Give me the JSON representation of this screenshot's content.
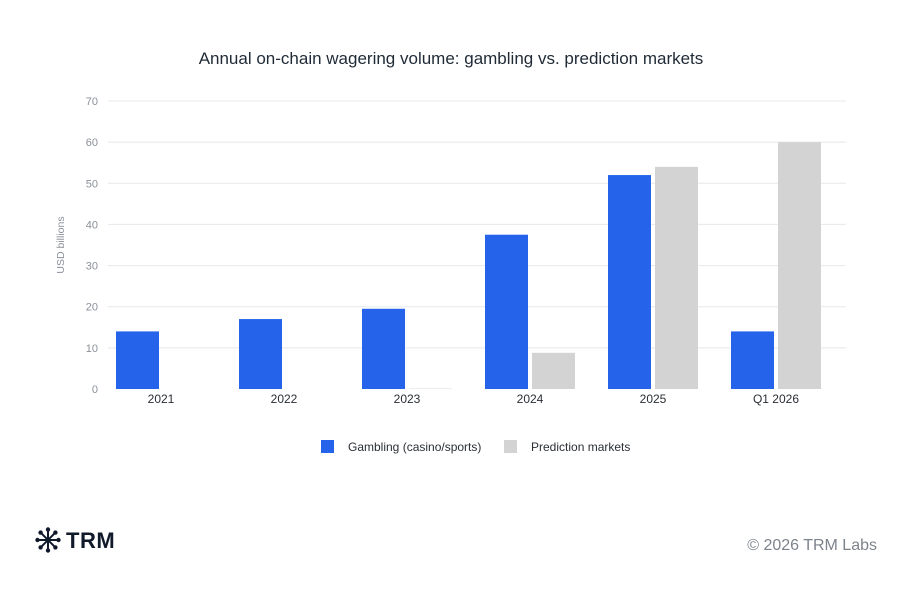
{
  "chart_data": {
    "type": "bar",
    "title": "Annual on-chain wagering volume: gambling vs. prediction markets",
    "xlabel": "",
    "ylabel": "USD billions",
    "categories": [
      "2021",
      "2022",
      "2023",
      "2024",
      "2025",
      "Q1 2026"
    ],
    "series": [
      {
        "name": "Gambling (casino/sports)",
        "color": "#2563eb",
        "values": [
          14,
          17,
          19.5,
          37.5,
          52,
          14
        ]
      },
      {
        "name": "Prediction markets",
        "color": "#d3d3d3",
        "values": [
          0,
          0,
          0.1,
          8.8,
          54,
          60
        ]
      }
    ],
    "ylim": [
      0,
      70
    ],
    "yticks": [
      0,
      10,
      20,
      30,
      40,
      50,
      60,
      70
    ],
    "grid": true,
    "legend_position": "bottom-center"
  },
  "branding": {
    "logo_text": "TRM",
    "logo_icon": "asterisk-network-icon",
    "copyright": "© 2026 TRM Labs"
  }
}
